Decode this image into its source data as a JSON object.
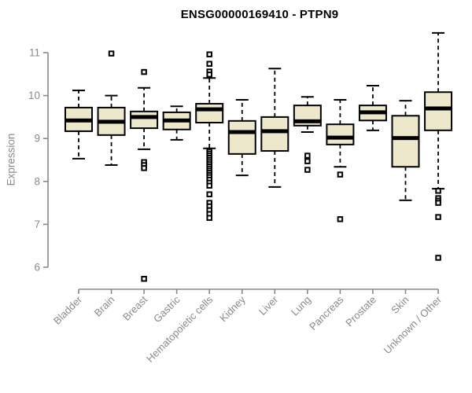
{
  "colors": {
    "box_fill": "#ede7cb",
    "box_border": "#000000",
    "median_line": "#000000",
    "whisker": "#000000",
    "outlier": "#000000",
    "axis_line": "#888888",
    "axis_text": "#8a8a8a",
    "title_text": "#000000",
    "background": "#ffffff"
  },
  "chart_data": {
    "type": "boxplot",
    "title": "ENSG00000169410 - PTPN9",
    "xlabel": "",
    "ylabel": "Expression",
    "ylim": [
      6,
      11
    ],
    "yticks": [
      6,
      7,
      8,
      9,
      10,
      11
    ],
    "grid": false,
    "legend": "none",
    "categories": [
      "Bladder",
      "Brain",
      "Breast",
      "Gastric",
      "Hematopoietic cells",
      "Kidney",
      "Liver",
      "Lung",
      "Pancreas",
      "Prostate",
      "Skin",
      "Unknown / Other"
    ],
    "series": [
      {
        "name": "Bladder",
        "whisker_low": 8.53,
        "q1": 9.17,
        "median": 9.42,
        "q3": 9.72,
        "whisker_high": 10.12,
        "outliers": []
      },
      {
        "name": "Brain",
        "whisker_low": 8.38,
        "q1": 9.08,
        "median": 9.39,
        "q3": 9.72,
        "whisker_high": 10.0,
        "outliers": [
          10.98
        ]
      },
      {
        "name": "Breast",
        "whisker_low": 8.75,
        "q1": 9.24,
        "median": 9.5,
        "q3": 9.63,
        "whisker_high": 10.18,
        "outliers": [
          10.55,
          8.45,
          8.38,
          8.31,
          5.73
        ]
      },
      {
        "name": "Gastric",
        "whisker_low": 8.97,
        "q1": 9.21,
        "median": 9.42,
        "q3": 9.61,
        "whisker_high": 9.75,
        "outliers": []
      },
      {
        "name": "Hematopoietic cells",
        "whisker_low": 8.77,
        "q1": 9.37,
        "median": 9.68,
        "q3": 9.81,
        "whisker_high": 10.41,
        "outliers": [
          10.96,
          10.74,
          10.56,
          10.49,
          8.7,
          8.65,
          8.6,
          8.55,
          8.5,
          8.45,
          8.4,
          8.35,
          8.3,
          8.25,
          8.2,
          8.15,
          8.1,
          8.04,
          7.97,
          7.9,
          7.7,
          7.5,
          7.42,
          7.33,
          7.24,
          7.15
        ]
      },
      {
        "name": "Kidney",
        "whisker_low": 8.14,
        "q1": 8.64,
        "median": 9.15,
        "q3": 9.41,
        "whisker_high": 9.9,
        "outliers": []
      },
      {
        "name": "Liver",
        "whisker_low": 7.87,
        "q1": 8.71,
        "median": 9.17,
        "q3": 9.5,
        "whisker_high": 10.63,
        "outliers": []
      },
      {
        "name": "Lung",
        "whisker_low": 9.15,
        "q1": 9.3,
        "median": 9.4,
        "q3": 9.77,
        "whisker_high": 9.97,
        "outliers": [
          8.6,
          8.47,
          8.27
        ]
      },
      {
        "name": "Pancreas",
        "whisker_low": 8.34,
        "q1": 8.86,
        "median": 9.02,
        "q3": 9.33,
        "whisker_high": 9.9,
        "outliers": [
          8.16,
          7.12
        ]
      },
      {
        "name": "Prostate",
        "whisker_low": 9.19,
        "q1": 9.42,
        "median": 9.61,
        "q3": 9.77,
        "whisker_high": 10.23,
        "outliers": []
      },
      {
        "name": "Skin",
        "whisker_low": 7.56,
        "q1": 8.34,
        "median": 9.01,
        "q3": 9.53,
        "whisker_high": 9.88,
        "outliers": []
      },
      {
        "name": "Unknown / Other",
        "whisker_low": 7.83,
        "q1": 9.19,
        "median": 9.7,
        "q3": 10.08,
        "whisker_high": 11.46,
        "outliers": [
          7.78,
          7.61,
          7.55,
          7.5,
          7.17,
          6.22
        ]
      }
    ]
  }
}
